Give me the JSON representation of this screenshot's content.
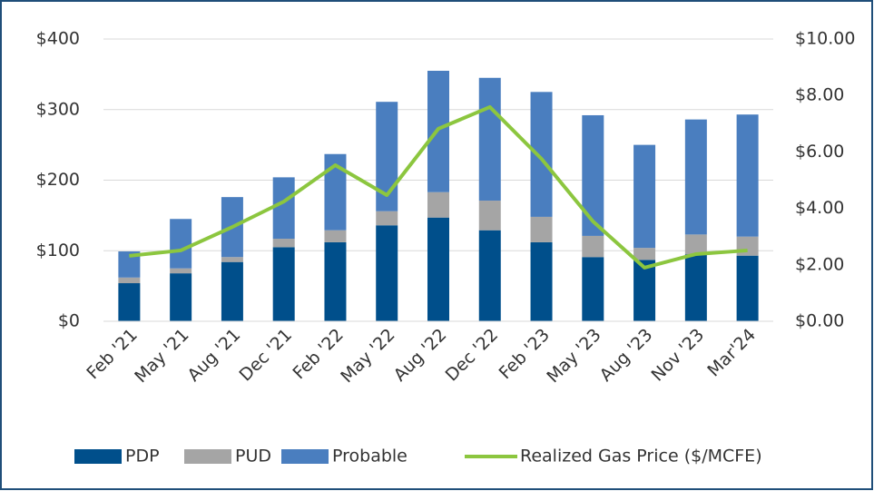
{
  "chart_data": {
    "type": "stacked_bar_line",
    "categories": [
      "Feb '21",
      "May '21",
      "Aug '21",
      "Dec '21",
      "Feb '22",
      "May '22",
      "Aug '22",
      "Dec '22",
      "Feb '23",
      "May '23",
      "Aug '23",
      "Nov '23",
      "Mar'24"
    ],
    "series": [
      {
        "name": "PDP",
        "color": "#004f8b",
        "kind": "bar",
        "values": [
          54,
          68,
          84,
          105,
          112,
          136,
          147,
          129,
          112,
          91,
          87,
          95,
          93
        ]
      },
      {
        "name": "PUD",
        "color": "#a5a5a5",
        "kind": "bar",
        "values": [
          8,
          7,
          7,
          12,
          17,
          20,
          36,
          42,
          36,
          30,
          17,
          28,
          27
        ]
      },
      {
        "name": "Probable",
        "color": "#4a7ebf",
        "kind": "bar",
        "values": [
          37,
          70,
          85,
          87,
          108,
          155,
          172,
          174,
          177,
          171,
          146,
          163,
          173
        ]
      },
      {
        "name": "Realized Gas Price ($/MCFE)",
        "color": "#8cc63f",
        "kind": "line",
        "axis": "y2",
        "values": [
          2.32,
          2.51,
          3.34,
          4.24,
          5.53,
          4.47,
          6.82,
          7.59,
          5.76,
          3.54,
          1.9,
          2.38,
          2.51
        ]
      }
    ],
    "ylim": [
      0,
      400
    ],
    "yticks": [
      {
        "value": 0,
        "label": "$0"
      },
      {
        "value": 100,
        "label": "$100"
      },
      {
        "value": 200,
        "label": "$200"
      },
      {
        "value": 300,
        "label": "$300"
      },
      {
        "value": 400,
        "label": "$400"
      }
    ],
    "y2lim": [
      0,
      10
    ],
    "y2ticks": [
      {
        "value": 0,
        "label": "$0.00"
      },
      {
        "value": 2,
        "label": "$2.00"
      },
      {
        "value": 4,
        "label": "$4.00"
      },
      {
        "value": 6,
        "label": "$6.00"
      },
      {
        "value": 8,
        "label": "$8.00"
      },
      {
        "value": 10,
        "label": "$10.00"
      }
    ],
    "grid": true
  }
}
